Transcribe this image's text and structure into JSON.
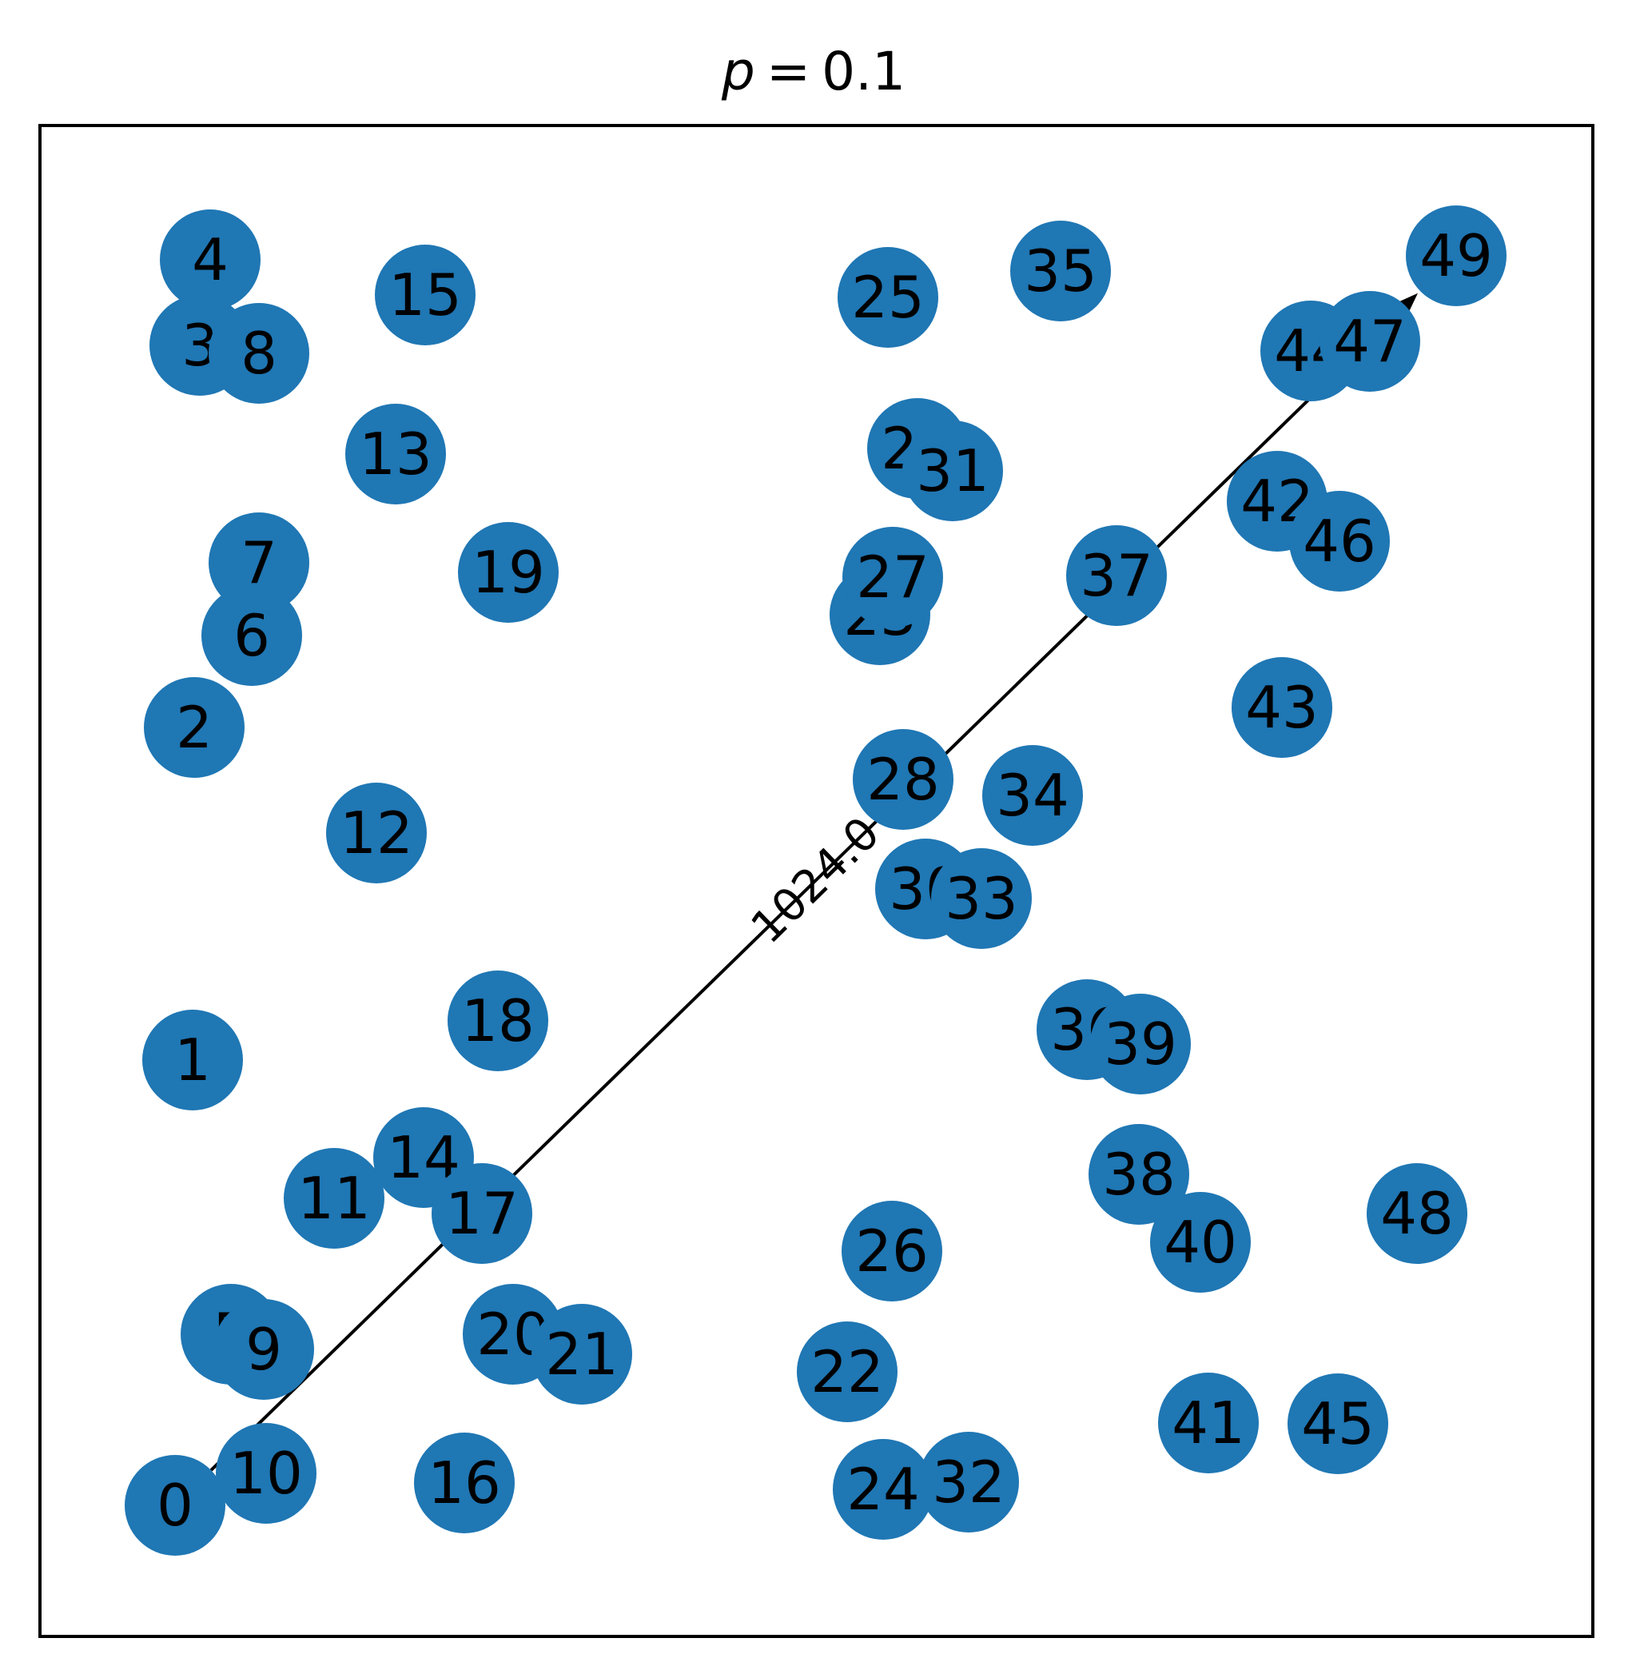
{
  "title": {
    "variable": "p",
    "equals": "=",
    "value": "0.1"
  },
  "colors": {
    "node": "#1f77b4",
    "edge": "#000000",
    "frame": "#000000",
    "background": "#ffffff"
  },
  "graph": {
    "directed": true,
    "nodes": [
      {
        "id": "0"
      },
      {
        "id": "1"
      },
      {
        "id": "2"
      },
      {
        "id": "3"
      },
      {
        "id": "4"
      },
      {
        "id": "5"
      },
      {
        "id": "6"
      },
      {
        "id": "7"
      },
      {
        "id": "8"
      },
      {
        "id": "9"
      },
      {
        "id": "10"
      },
      {
        "id": "11"
      },
      {
        "id": "12"
      },
      {
        "id": "13"
      },
      {
        "id": "14"
      },
      {
        "id": "15"
      },
      {
        "id": "16"
      },
      {
        "id": "17"
      },
      {
        "id": "18"
      },
      {
        "id": "19"
      },
      {
        "id": "20"
      },
      {
        "id": "21"
      },
      {
        "id": "22"
      },
      {
        "id": "23"
      },
      {
        "id": "24"
      },
      {
        "id": "25"
      },
      {
        "id": "26"
      },
      {
        "id": "27"
      },
      {
        "id": "28"
      },
      {
        "id": "29"
      },
      {
        "id": "30"
      },
      {
        "id": "31"
      },
      {
        "id": "32"
      },
      {
        "id": "33"
      },
      {
        "id": "34"
      },
      {
        "id": "35"
      },
      {
        "id": "36"
      },
      {
        "id": "37"
      },
      {
        "id": "38"
      },
      {
        "id": "39"
      },
      {
        "id": "40"
      },
      {
        "id": "41"
      },
      {
        "id": "42"
      },
      {
        "id": "43"
      },
      {
        "id": "44"
      },
      {
        "id": "45"
      },
      {
        "id": "46"
      },
      {
        "id": "47"
      },
      {
        "id": "48"
      },
      {
        "id": "49"
      }
    ],
    "edges": [
      {
        "source": "0",
        "target": "49",
        "label": "1024.0"
      }
    ]
  }
}
